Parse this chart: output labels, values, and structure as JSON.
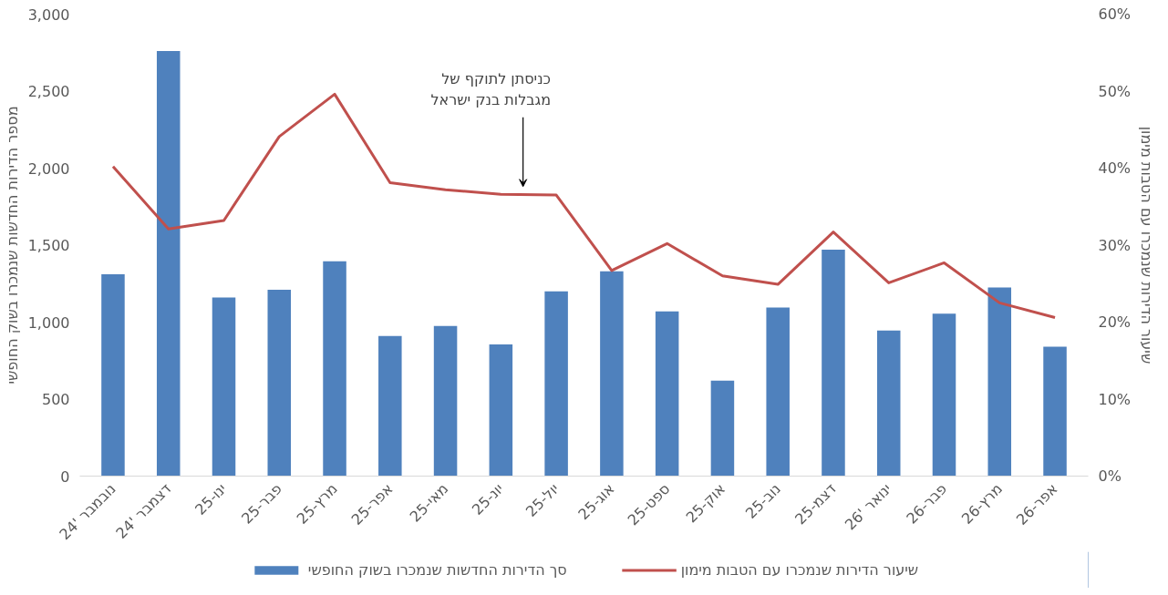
{
  "chart_data": {
    "type": "bar",
    "categories": [
      "נובמבר '24",
      "דצמבר '24",
      "ינו-25",
      "פבר-25",
      "מרץ-25",
      "אפר-25",
      "מאי-25",
      "יונ-25",
      "יול-25",
      "אוג-25",
      "ספט-25",
      "אוק-25",
      "נוב-25",
      "דצמ-25",
      "ינואר '26",
      "פבר-26",
      "מרץ-26",
      "אפר-26"
    ],
    "series": [
      {
        "name": "סך הדירות החדשות שנמכרו בשוק החופשי",
        "color": "#4f81bd",
        "values": [
          1310,
          2760,
          1160,
          1210,
          1395,
          910,
          975,
          855,
          1200,
          1330,
          1070,
          620,
          1095,
          1470,
          945,
          1055,
          1225,
          840
        ]
      },
      {
        "name": "שיעור הדירות שנמכרו עם הטבות מימון",
        "type": "line",
        "axis": "y2",
        "color": "#c0504d",
        "values": [
          40.2,
          32.1,
          33.2,
          44.1,
          49.6,
          38.1,
          37.2,
          36.6,
          36.5,
          26.7,
          30.2,
          26.0,
          24.9,
          31.7,
          25.1,
          27.7,
          22.5,
          20.6
        ]
      }
    ],
    "ylabel": "מספר הדירות החדשות שנמכרו בשוק החופשי",
    "y2label": "שיעור הדירות שנמכרו עם הטבות מימון",
    "ylim": [
      0,
      3000
    ],
    "yticks": [
      {
        "value": 0,
        "label": "0"
      },
      {
        "value": 500,
        "label": "500"
      },
      {
        "value": 1000,
        "label": "1,000"
      },
      {
        "value": 1500,
        "label": "1,500"
      },
      {
        "value": 2000,
        "label": "2,000"
      },
      {
        "value": 2500,
        "label": "2,500"
      },
      {
        "value": 3000,
        "label": "3,000"
      }
    ],
    "y2lim": [
      0,
      60
    ],
    "y2ticks": [
      {
        "value": 0,
        "label": "0%"
      },
      {
        "value": 10,
        "label": "10%"
      },
      {
        "value": 20,
        "label": "20%"
      },
      {
        "value": 30,
        "label": "30%"
      },
      {
        "value": 40,
        "label": "40%"
      },
      {
        "value": 50,
        "label": "50%"
      },
      {
        "value": 60,
        "label": "60%"
      }
    ],
    "annotations": [
      "כניסתן לתוקף של\nמגבלות בנק ישראל"
    ],
    "grid": false,
    "legend": "bottom",
    "marker": "none",
    "line_style": "solid"
  }
}
